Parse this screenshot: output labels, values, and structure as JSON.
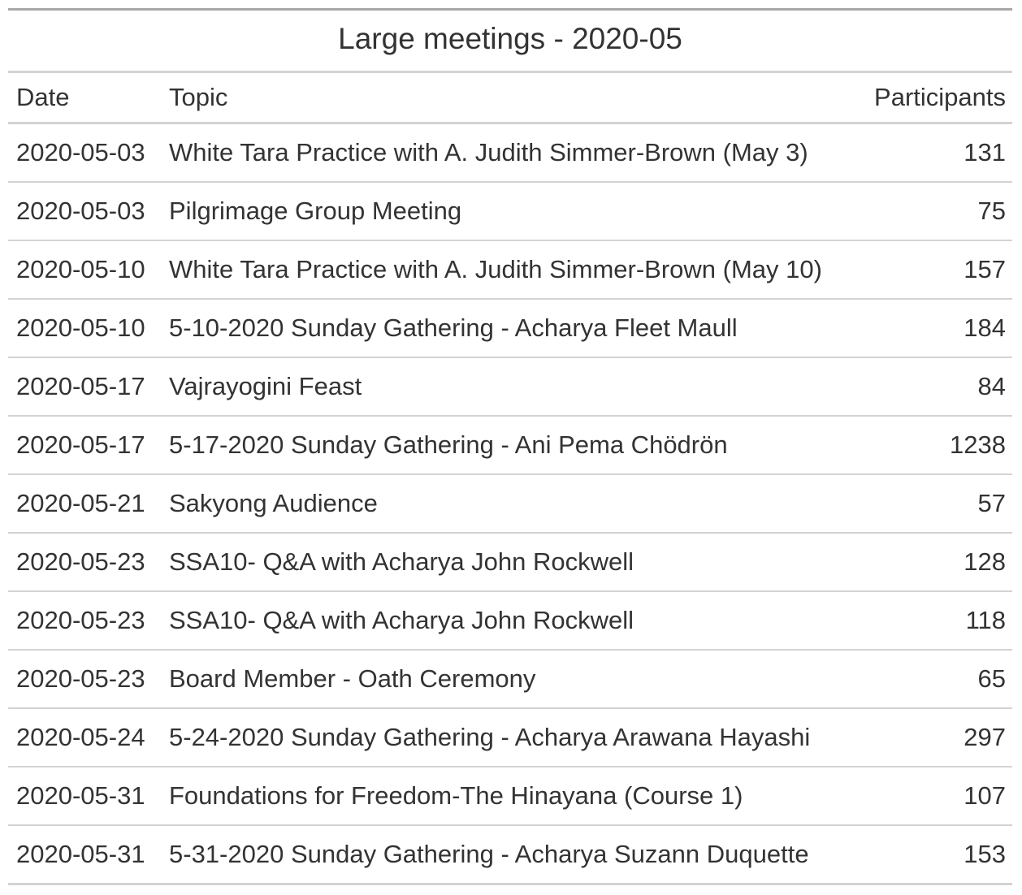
{
  "table": {
    "title": "Large meetings - 2020-05",
    "columns": {
      "date": "Date",
      "topic": "Topic",
      "participants": "Participants"
    },
    "rows": [
      {
        "date": "2020-05-03",
        "topic": "White Tara Practice with A. Judith Simmer-Brown (May 3)",
        "participants": "131"
      },
      {
        "date": "2020-05-03",
        "topic": "Pilgrimage Group Meeting",
        "participants": "75"
      },
      {
        "date": "2020-05-10",
        "topic": "White Tara Practice with A. Judith Simmer-Brown (May 10)",
        "participants": "157"
      },
      {
        "date": "2020-05-10",
        "topic": "5-10-2020 Sunday Gathering - Acharya Fleet Maull",
        "participants": "184"
      },
      {
        "date": "2020-05-17",
        "topic": "Vajrayogini Feast",
        "participants": "84"
      },
      {
        "date": "2020-05-17",
        "topic": "5-17-2020 Sunday Gathering - Ani Pema Chödrön",
        "participants": "1238"
      },
      {
        "date": "2020-05-21",
        "topic": "Sakyong Audience",
        "participants": "57"
      },
      {
        "date": "2020-05-23",
        "topic": "SSA10- Q&A with Acharya John Rockwell",
        "participants": "128"
      },
      {
        "date": "2020-05-23",
        "topic": "SSA10- Q&A with Acharya John Rockwell",
        "participants": "118"
      },
      {
        "date": "2020-05-23",
        "topic": "Board Member - Oath Ceremony",
        "participants": "65"
      },
      {
        "date": "2020-05-24",
        "topic": "5-24-2020 Sunday Gathering - Acharya Arawana Hayashi",
        "participants": "297"
      },
      {
        "date": "2020-05-31",
        "topic": "Foundations for Freedom-The Hinayana (Course 1)",
        "participants": "107"
      },
      {
        "date": "2020-05-31",
        "topic": "5-31-2020 Sunday Gathering - Acharya Suzann Duquette",
        "participants": "153"
      }
    ]
  }
}
